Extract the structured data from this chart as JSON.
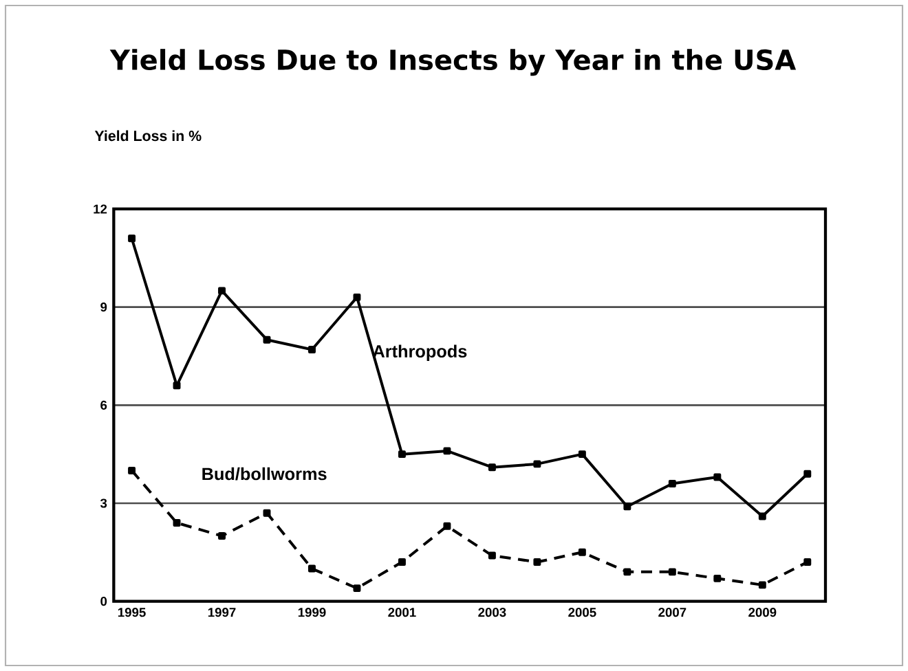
{
  "chart_data": {
    "type": "line",
    "title": "Yield Loss Due to Insects by Year in the USA",
    "ylabel": "Yield Loss in %",
    "x": [
      1995,
      1996,
      1997,
      1998,
      1999,
      2000,
      2001,
      2002,
      2003,
      2004,
      2005,
      2006,
      2007,
      2008,
      2009,
      2010
    ],
    "series": [
      {
        "name": "Arthropods",
        "color": "#000000",
        "line_style": "solid",
        "values": [
          11.1,
          6.6,
          9.5,
          8.0,
          7.7,
          9.3,
          4.5,
          4.6,
          4.1,
          4.2,
          4.5,
          2.9,
          3.6,
          3.8,
          2.6,
          3.9
        ]
      },
      {
        "name": "Bud/bollworms",
        "color": "#000000",
        "line_style": "dashed",
        "values": [
          4.0,
          2.4,
          2.0,
          2.7,
          1.0,
          0.4,
          1.2,
          2.3,
          1.4,
          1.2,
          1.5,
          0.9,
          0.9,
          0.7,
          0.5,
          1.2
        ]
      }
    ],
    "xlim": [
      1994.6,
      2010.4
    ],
    "ylim": [
      0,
      12
    ],
    "xticks": [
      1995,
      1997,
      1999,
      2001,
      2003,
      2005,
      2007,
      2009
    ],
    "yticks": [
      0,
      3,
      6,
      9,
      12
    ],
    "grid": "y",
    "marker": "square"
  }
}
